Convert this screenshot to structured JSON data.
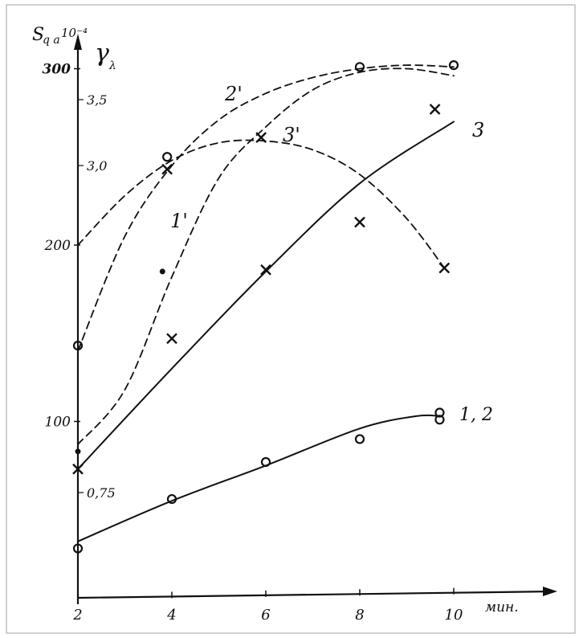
{
  "chart_data": {
    "type": "line",
    "title": "",
    "x_unit_label": "мин.",
    "x_ticks": [
      "2",
      "4",
      "6",
      "8",
      "10"
    ],
    "xlim": [
      2,
      10.5
    ],
    "left_axis_label": "S",
    "left_axis_label_sub": "q a",
    "left_axis_exponent": "10⁻⁴",
    "left_axis_ticks": [
      "100",
      "200",
      "300"
    ],
    "left_axis_range": [
      0,
      305
    ],
    "right_axis_label": "γ",
    "right_axis_label_sub": "λ",
    "right_axis_ticks": [
      "0,75",
      "3,0",
      "3,5"
    ],
    "series": [
      {
        "name": "1, 2",
        "line_style": "solid",
        "marker": "o",
        "curve": [
          [
            2,
            32
          ],
          [
            4,
            55
          ],
          [
            6,
            75
          ],
          [
            8,
            96
          ],
          [
            9.2,
            103
          ],
          [
            9.7,
            103
          ]
        ],
        "points": [
          [
            2,
            28
          ],
          [
            4,
            56
          ],
          [
            6,
            77
          ],
          [
            8,
            90
          ],
          [
            9.7,
            105
          ],
          [
            9.7,
            101
          ]
        ]
      },
      {
        "name": "3",
        "line_style": "solid",
        "marker": "x",
        "curve": [
          [
            2,
            73
          ],
          [
            4,
            130
          ],
          [
            6,
            185
          ],
          [
            8,
            235
          ],
          [
            10,
            270
          ]
        ],
        "points": [
          [
            2,
            73
          ],
          [
            4,
            147
          ],
          [
            6,
            186
          ],
          [
            8,
            213
          ],
          [
            9.6,
            277
          ]
        ]
      },
      {
        "name": "1'",
        "line_style": "dashed",
        "marker": "•",
        "curve": [
          [
            2,
            87
          ],
          [
            3,
            118
          ],
          [
            4,
            182
          ],
          [
            5,
            238
          ],
          [
            6,
            267
          ],
          [
            7,
            288
          ],
          [
            8,
            298
          ],
          [
            9,
            300
          ],
          [
            10,
            296
          ]
        ],
        "points": [
          [
            2,
            83
          ],
          [
            3.8,
            185
          ]
        ]
      },
      {
        "name": "2'",
        "line_style": "dashed",
        "marker": "o",
        "curve": [
          [
            2,
            140
          ],
          [
            3,
            205
          ],
          [
            4,
            245
          ],
          [
            5,
            271
          ],
          [
            6,
            286
          ],
          [
            7,
            295
          ],
          [
            8,
            300
          ],
          [
            9,
            302
          ],
          [
            10,
            301
          ]
        ],
        "points": [
          [
            2,
            143
          ],
          [
            3.9,
            250
          ],
          [
            8,
            301
          ],
          [
            10,
            302
          ]
        ]
      },
      {
        "name": "3'",
        "line_style": "dashed",
        "marker": "x",
        "curve": [
          [
            2,
            200
          ],
          [
            3,
            228
          ],
          [
            4,
            248
          ],
          [
            5,
            258
          ],
          [
            6,
            259
          ],
          [
            7,
            254
          ],
          [
            8,
            240
          ],
          [
            9,
            215
          ],
          [
            9.8,
            187
          ]
        ],
        "points": [
          [
            3.9,
            243
          ],
          [
            5.9,
            261
          ],
          [
            9.8,
            187
          ]
        ]
      }
    ],
    "curve_labels": [
      "1, 2",
      "3",
      "1'",
      "2'",
      "3'"
    ]
  }
}
